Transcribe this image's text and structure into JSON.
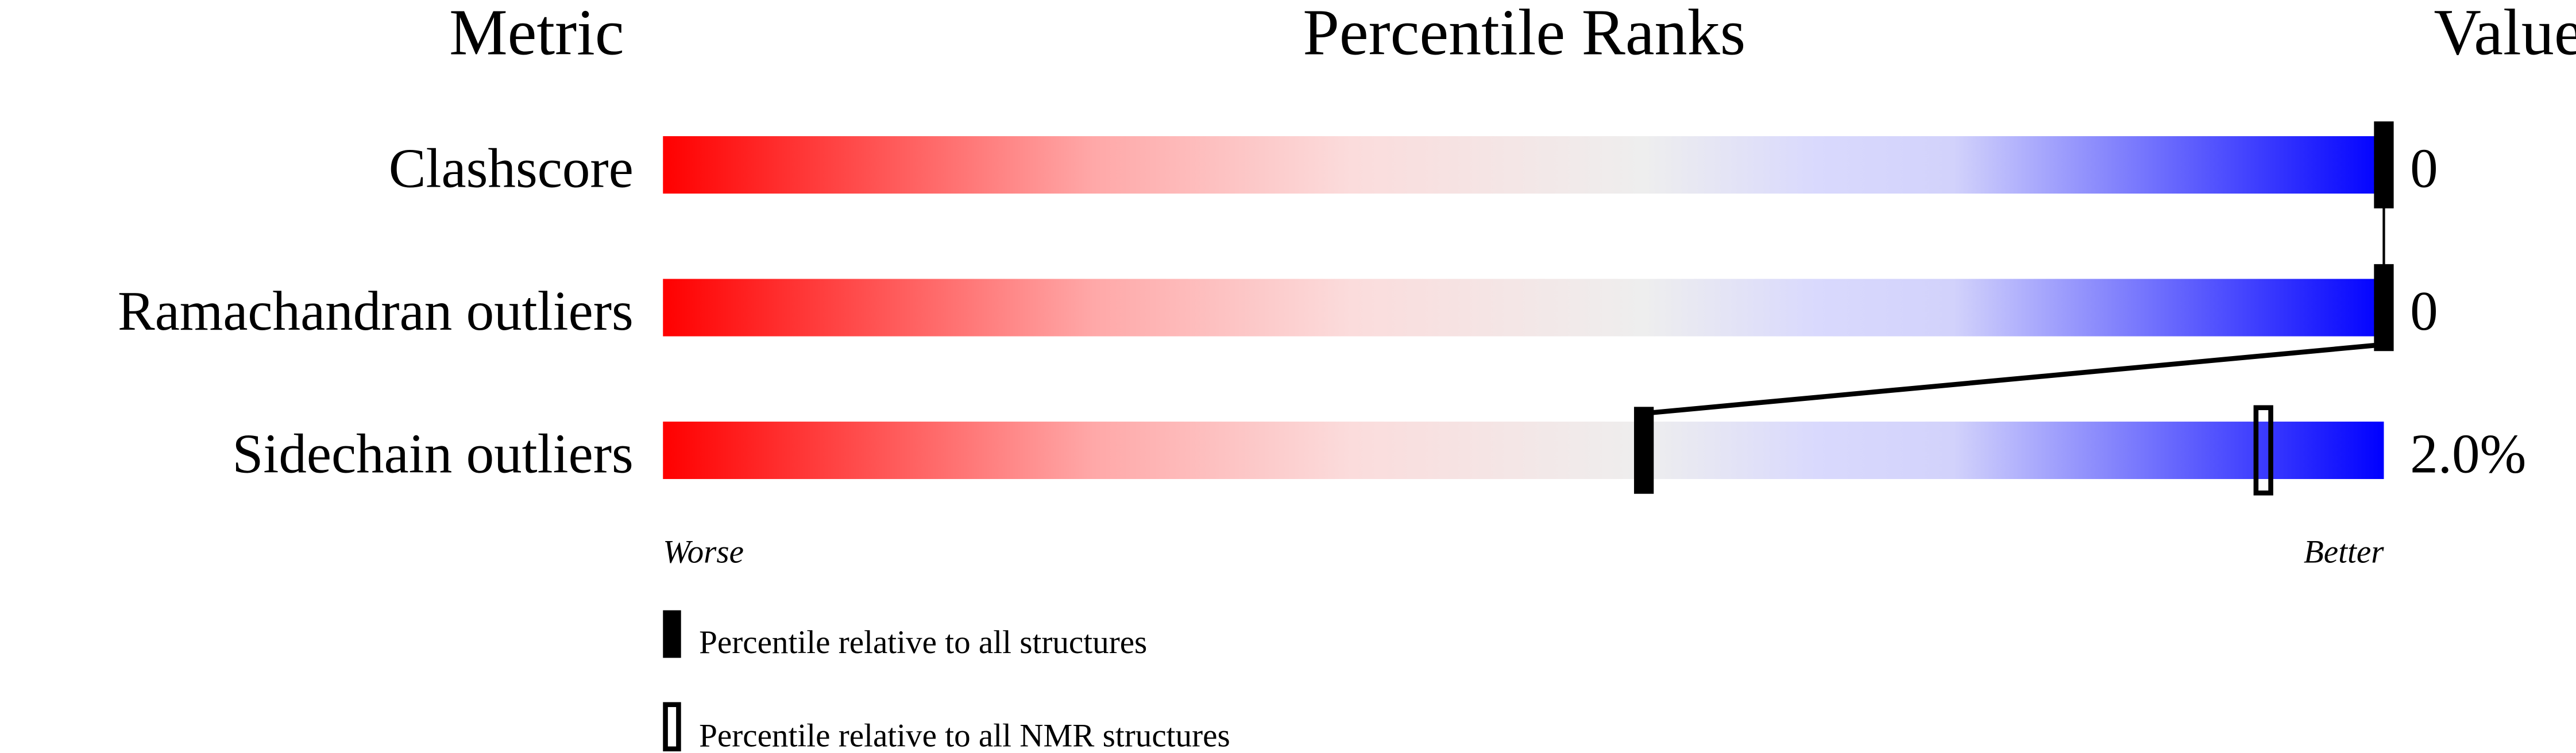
{
  "chart_data": {
    "type": "percentile-slider",
    "headers": {
      "metric": "Metric",
      "percentile": "Percentile Ranks",
      "value": "Value"
    },
    "xlim": [
      0,
      100
    ],
    "gradient_colors": [
      "#ff0000",
      "#ffd9d9",
      "#eeeeee",
      "#d9d9ff",
      "#0000ff"
    ],
    "metrics": [
      {
        "name": "Clashscore",
        "value": "0",
        "percentile_all": 100,
        "percentile_nmr": null
      },
      {
        "name": "Ramachandran outliers",
        "value": "0",
        "percentile_all": 100,
        "percentile_nmr": null
      },
      {
        "name": "Sidechain outliers",
        "value": "2.0%",
        "percentile_all": 57,
        "percentile_nmr": 93
      }
    ],
    "axis_labels": {
      "left": "Worse",
      "right": "Better"
    },
    "legend": [
      {
        "marker": "filled",
        "label": "Percentile relative to all structures"
      },
      {
        "marker": "open",
        "label": "Percentile relative to all NMR structures"
      }
    ]
  }
}
